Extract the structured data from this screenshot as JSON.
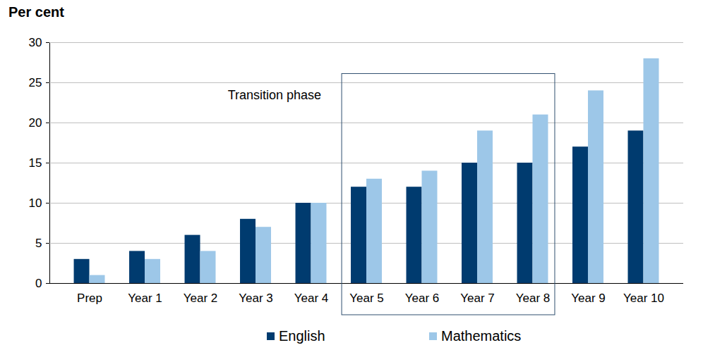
{
  "chart_data": {
    "type": "bar",
    "ylabel": "Per cent",
    "categories": [
      "Prep",
      "Year 1",
      "Year 2",
      "Year 3",
      "Year 4",
      "Year 5",
      "Year 6",
      "Year 7",
      "Year 8",
      "Year 9",
      "Year 10"
    ],
    "series": [
      {
        "name": "English",
        "color": "#003b6f",
        "values": [
          3,
          4,
          6,
          8,
          10,
          12,
          12,
          15,
          15,
          17,
          19
        ]
      },
      {
        "name": "Mathematics",
        "color": "#9dc7e8",
        "values": [
          1,
          3,
          4,
          7,
          10,
          13,
          14,
          19,
          21,
          24,
          28
        ]
      }
    ],
    "ylim": [
      0,
      30
    ],
    "yticks": [
      0,
      5,
      10,
      15,
      20,
      25,
      30
    ],
    "grid": true,
    "legend": "bottom",
    "annotations": [
      {
        "text": "Transition phase",
        "from": "Year 5",
        "to": "Year 8"
      }
    ]
  }
}
